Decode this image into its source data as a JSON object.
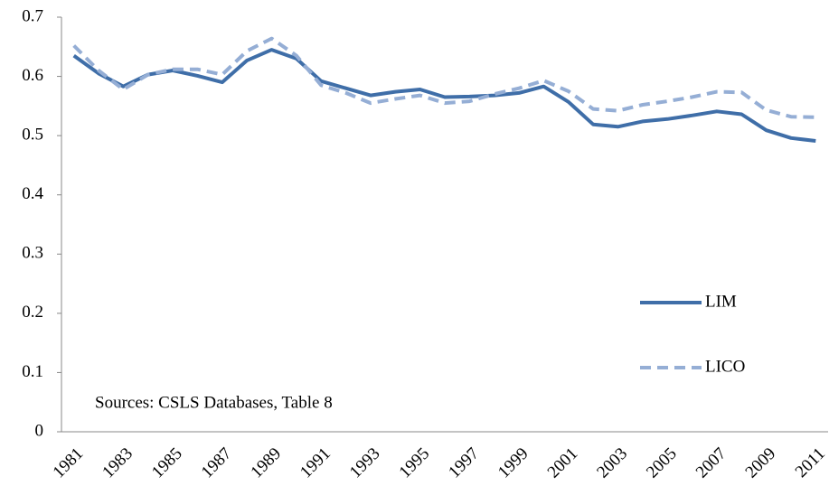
{
  "chart_data": {
    "type": "line",
    "annotation": "Sources: CSLS Databases, Table 8",
    "categories": [
      "1981",
      null,
      "1983",
      null,
      "1985",
      null,
      "1987",
      null,
      "1989",
      null,
      "1991",
      null,
      "1993",
      null,
      "1995",
      null,
      "1997",
      null,
      "1999",
      null,
      "2001",
      null,
      "2003",
      null,
      "2005",
      null,
      "2007",
      null,
      "2009",
      null,
      "2011"
    ],
    "series": [
      {
        "name": "LIM",
        "color": "#3f6ea8",
        "dash": "solid",
        "values": [
          0.635,
          0.605,
          0.583,
          0.603,
          0.61,
          0.601,
          0.59,
          0.627,
          0.645,
          0.63,
          0.592,
          0.58,
          0.568,
          0.574,
          0.578,
          0.565,
          0.566,
          0.568,
          0.572,
          0.583,
          0.557,
          0.519,
          0.515,
          0.524,
          0.528,
          0.534,
          0.541,
          0.536,
          0.509,
          0.496,
          0.491
        ]
      },
      {
        "name": "LICO",
        "color": "#95aed5",
        "dash": "dashed",
        "values": [
          0.652,
          0.61,
          0.578,
          0.603,
          0.612,
          0.612,
          0.603,
          0.643,
          0.664,
          0.635,
          0.585,
          0.572,
          0.555,
          0.562,
          0.568,
          0.555,
          0.558,
          0.57,
          0.58,
          0.593,
          0.575,
          0.545,
          0.542,
          0.552,
          0.558,
          0.565,
          0.574,
          0.573,
          0.543,
          0.532,
          0.531
        ]
      }
    ],
    "ylim": [
      0,
      0.7
    ],
    "yticks": [
      0,
      0.1,
      0.2,
      0.3,
      0.4,
      0.5,
      0.6,
      0.7
    ],
    "grid": false,
    "legend": "right"
  }
}
